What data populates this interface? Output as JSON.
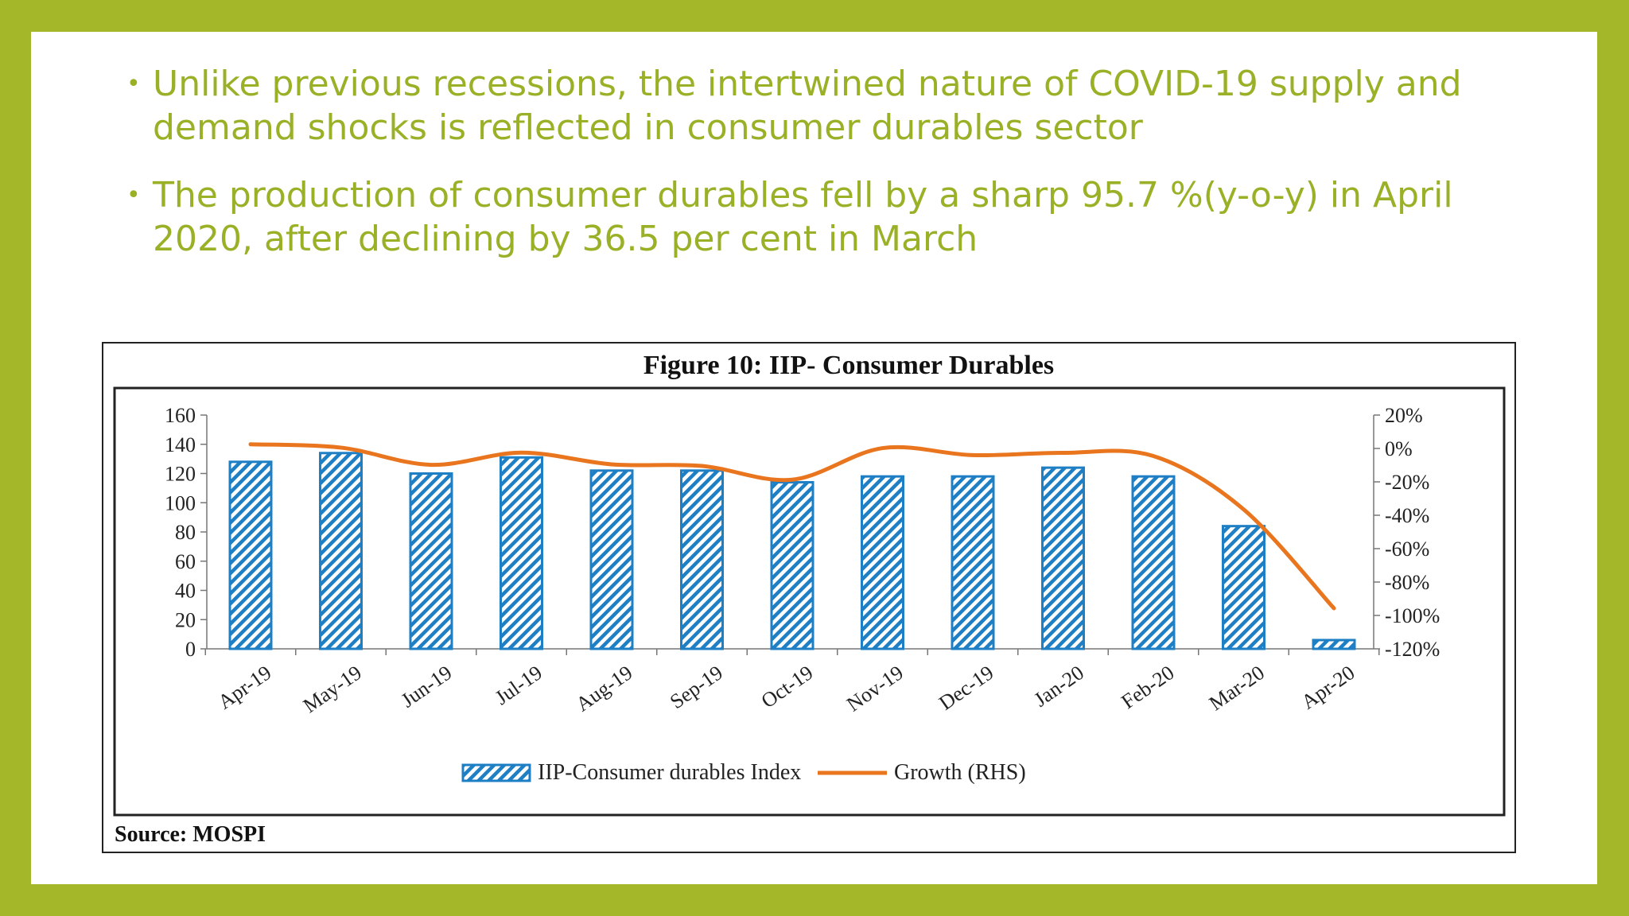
{
  "bullets": [
    "Unlike previous recessions, the intertwined nature of COVID-19 supply and demand shocks is reflected in consumer durables sector",
    "The production of consumer durables fell by a sharp 95.7 %(y-o-y) in April 2020, after declining by 36.5 per cent in March"
  ],
  "chart_data": {
    "type": "bar",
    "title": "Figure 10: IIP- Consumer Durables",
    "source": "Source: MOSPI",
    "categories": [
      "Apr-19",
      "May-19",
      "Jun-19",
      "Jul-19",
      "Aug-19",
      "Sep-19",
      "Oct-19",
      "Nov-19",
      "Dec-19",
      "Jan-20",
      "Feb-20",
      "Mar-20",
      "Apr-20"
    ],
    "series": [
      {
        "name": "IIP-Consumer durables Index",
        "type": "bar",
        "axis": "left",
        "values": [
          128,
          134,
          120,
          131,
          122,
          122,
          114,
          118,
          118,
          124,
          118,
          84,
          6
        ]
      },
      {
        "name": "Growth (RHS)",
        "type": "line",
        "axis": "right",
        "values": [
          2.5,
          0.5,
          -9.8,
          -2.5,
          -9.5,
          -10.5,
          -18.7,
          0.2,
          -4.0,
          -2.6,
          -4.5,
          -36.5,
          -95.7
        ]
      }
    ],
    "y_left": {
      "min": 0,
      "max": 160,
      "ticks": [
        0,
        20,
        40,
        60,
        80,
        100,
        120,
        140,
        160
      ]
    },
    "y_right": {
      "min": -120,
      "max": 20,
      "ticks": [
        -120,
        -100,
        -80,
        -60,
        -40,
        -20,
        0,
        20
      ],
      "tick_labels": [
        "-120%",
        "-100%",
        "-80%",
        "-60%",
        "-40%",
        "-20%",
        "0%",
        "20%"
      ]
    },
    "legend_position": "bottom-center",
    "grid": false,
    "colors": {
      "bar": "#1f7fc4",
      "line": "#e9761f"
    }
  }
}
